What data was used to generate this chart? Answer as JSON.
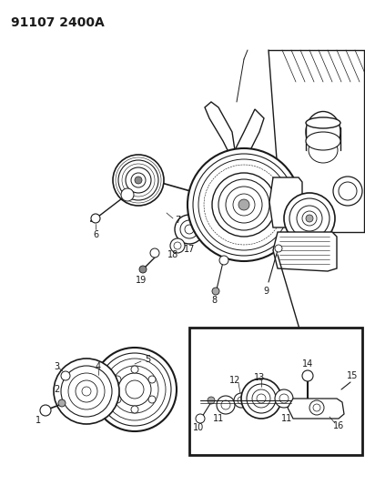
{
  "title": "91107 2400A",
  "title_fontsize": 10,
  "title_fontweight": "bold",
  "bg_color": "#ffffff",
  "fig_color": "#ffffff",
  "fig_width": 4.02,
  "fig_height": 5.33,
  "dpi": 100,
  "line_color": "#1a1a1a",
  "label_fontsize": 7.0,
  "label_color": "#1a1a1a",
  "lw": 0.9
}
